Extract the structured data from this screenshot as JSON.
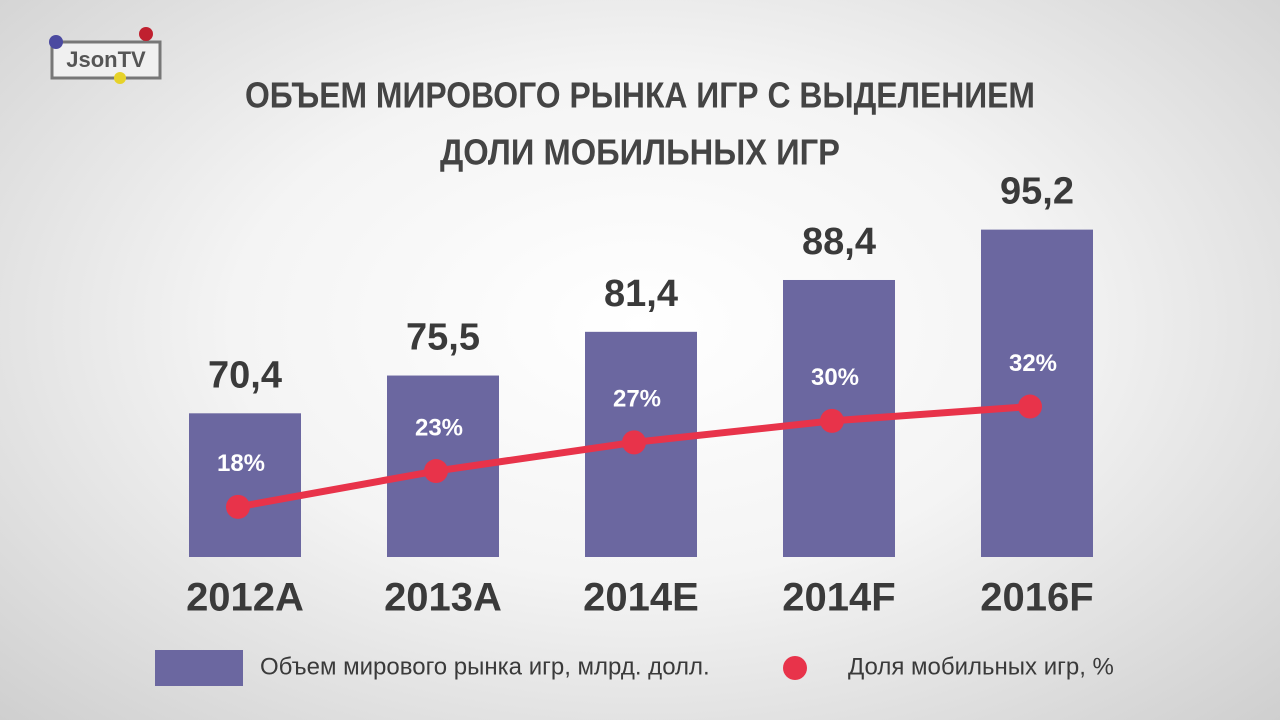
{
  "logo": "JsonTV",
  "chart_data": {
    "type": "bar",
    "title_lines": [
      "ОБЪЕМ МИРОВОГО РЫНКА ИГР С ВЫДЕЛЕНИЕМ",
      "ДОЛИ МОБИЛЬНЫХ ИГР"
    ],
    "categories": [
      "2012A",
      "2013A",
      "2014E",
      "2014F",
      "2016F"
    ],
    "ylim": [
      51,
      110
    ],
    "y2lim": [
      11,
      72
    ],
    "series": [
      {
        "name": "Объем мирового рынка игр, млрд. долл.",
        "type": "bar",
        "color": "#6b67a0",
        "values": [
          70.4,
          75.5,
          81.4,
          88.4,
          95.2
        ],
        "value_labels": [
          "70,4",
          "75,5",
          "81,4",
          "88,4",
          "95,2"
        ]
      },
      {
        "name": "Доля мобильных игр, %",
        "type": "line",
        "axis": "y2",
        "color": "#e8334a",
        "values": [
          18,
          23,
          27,
          30,
          32
        ],
        "value_labels": [
          "18%",
          "23%",
          "27%",
          "30%",
          "32%"
        ]
      }
    ]
  }
}
